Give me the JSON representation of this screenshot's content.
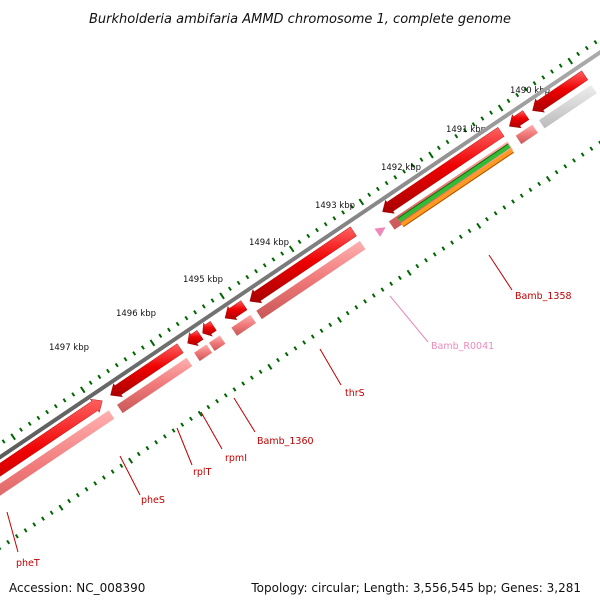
{
  "title": "Burkholderia ambifaria AMMD chromosome 1, complete genome",
  "footer": {
    "accession": "Accession: NC_008390",
    "summary": "Topology: circular; Length: 3,556,545 bp; Genes: 3,281"
  },
  "ticks": [
    {
      "label": "1490 kbp"
    },
    {
      "label": "1491 kbp"
    },
    {
      "label": "1492 kbp"
    },
    {
      "label": "1493 kbp"
    },
    {
      "label": "1494 kbp"
    },
    {
      "label": "1495 kbp"
    },
    {
      "label": "1496 kbp"
    },
    {
      "label": "1497 kbp"
    }
  ],
  "genes": [
    {
      "name": "pheT"
    },
    {
      "name": "pheS"
    },
    {
      "name": "rplT"
    },
    {
      "name": "rpmI"
    },
    {
      "name": "Bamb_1360"
    },
    {
      "name": "thrS"
    },
    {
      "name": "Bamb_R0041"
    },
    {
      "name": "Bamb_1358"
    }
  ],
  "colors": {
    "backbone": "#777777",
    "cds": "#ee0000",
    "cds_light": "#f08080",
    "rna": "#ee88bb",
    "green": "#33bb33",
    "orange": "#ff9922",
    "tick": "#006600",
    "gene_label": "#c00000"
  }
}
